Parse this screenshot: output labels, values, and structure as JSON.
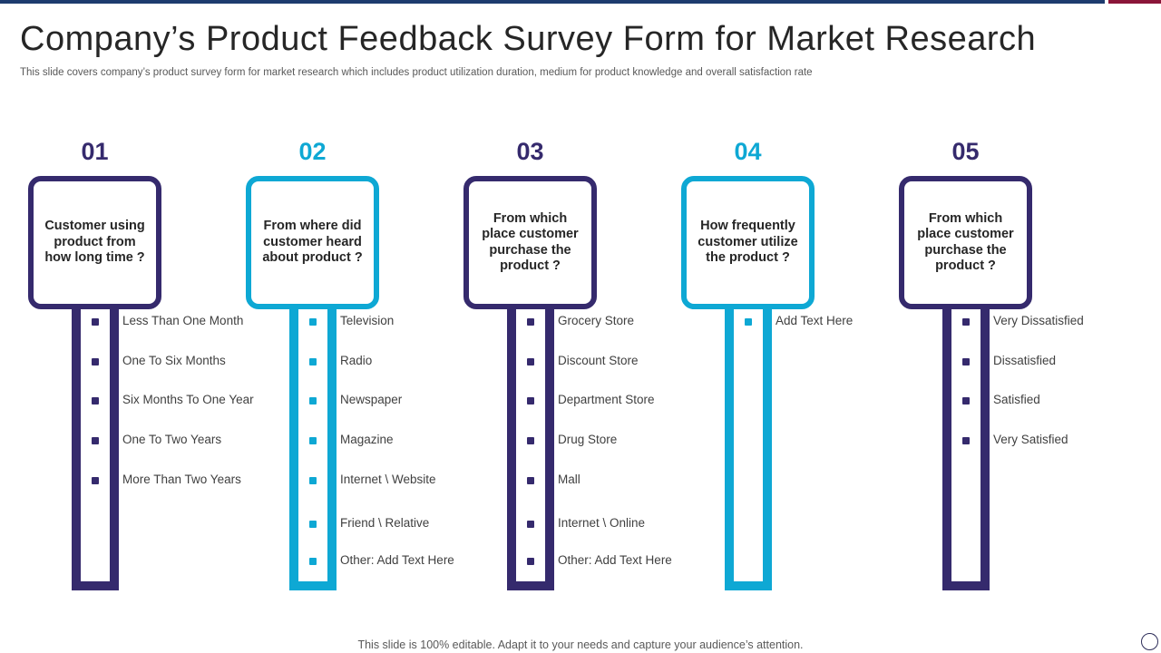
{
  "title": "Company’s Product Feedback Survey Form for Market Research",
  "subtitle": "This slide covers company’s product survey form for market research which includes product utilization duration, medium for product knowledge and overall satisfaction rate",
  "footer": "This slide is 100% editable. Adapt it to your needs and capture your audience’s attention.",
  "colors": {
    "navy": "#352a6d",
    "cyan": "#0ea8d4"
  },
  "columns": [
    {
      "number": "01",
      "color": "navy",
      "question": "Customer using product from how long time ?",
      "options": [
        "Less Than One Month",
        "One To Six Months",
        "Six Months To One Year",
        "One To Two Years",
        "More Than Two Years"
      ]
    },
    {
      "number": "02",
      "color": "cyan",
      "question": "From where did customer heard about product ?",
      "options": [
        "Television",
        "Radio",
        "Newspaper",
        "Magazine",
        "Internet \\ Website",
        "Friend \\ Relative",
        "Other: Add Text Here"
      ]
    },
    {
      "number": "03",
      "color": "navy",
      "question": "From which place customer purchase the product ?",
      "options": [
        "Grocery Store",
        "Discount Store",
        "Department Store",
        "Drug Store",
        "Mall",
        "Internet \\ Online",
        "Other: Add Text Here"
      ]
    },
    {
      "number": "04",
      "color": "cyan",
      "question": "How frequently customer utilize the product ?",
      "options": [
        "Add Text Here"
      ]
    },
    {
      "number": "05",
      "color": "navy",
      "question": "From which place customer purchase the product ?",
      "options": [
        "Very Dissatisfied",
        "Dissatisfied",
        "Satisfied",
        "Very Satisfied"
      ]
    }
  ]
}
